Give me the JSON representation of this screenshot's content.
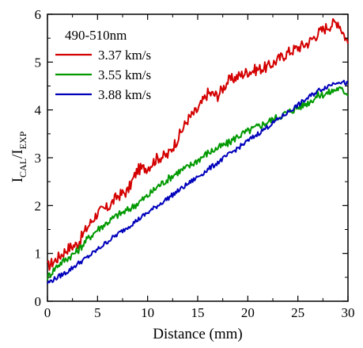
{
  "chart_data": {
    "type": "line",
    "title": "",
    "xlabel": "Distance (mm)",
    "ylabel": {
      "main_left": "I",
      "sub_left": "CAL",
      "slash": "/I",
      "sub_right": "EXP"
    },
    "xlim": [
      0,
      30
    ],
    "ylim": [
      0,
      6
    ],
    "x_ticks": [
      "0",
      "5",
      "10",
      "15",
      "20",
      "25",
      "30"
    ],
    "y_ticks": [
      "0",
      "1",
      "2",
      "3",
      "4",
      "5",
      "6"
    ],
    "grid": false,
    "legend_title": "490-510nm",
    "legend_position": "top-left",
    "series": [
      {
        "name": "3.37 km/s",
        "color": "#d40000",
        "x": [
          0,
          1,
          2,
          3,
          4,
          5,
          6,
          7,
          8,
          9,
          10,
          11,
          12,
          13,
          14,
          15,
          16,
          17,
          18,
          19,
          20,
          21,
          22,
          23,
          24,
          25,
          26,
          27,
          28,
          29,
          30
        ],
        "y": [
          0.72,
          0.9,
          1.1,
          1.2,
          1.55,
          1.85,
          1.95,
          2.2,
          2.3,
          2.75,
          2.8,
          3.0,
          3.05,
          3.4,
          3.8,
          4.0,
          4.35,
          4.3,
          4.6,
          4.7,
          4.8,
          4.85,
          4.9,
          5.05,
          5.2,
          5.3,
          5.4,
          5.6,
          5.75,
          5.85,
          5.4
        ]
      },
      {
        "name": "3.55 km/s",
        "color": "#009900",
        "x": [
          0,
          1,
          2,
          3,
          4,
          5,
          6,
          7,
          8,
          9,
          10,
          11,
          12,
          13,
          14,
          15,
          16,
          17,
          18,
          19,
          20,
          21,
          22,
          23,
          24,
          25,
          26,
          27,
          28,
          29,
          30
        ],
        "y": [
          0.5,
          0.75,
          0.9,
          1.05,
          1.3,
          1.5,
          1.65,
          1.8,
          1.9,
          2.05,
          2.2,
          2.4,
          2.55,
          2.7,
          2.8,
          2.95,
          3.1,
          3.2,
          3.3,
          3.45,
          3.55,
          3.65,
          3.75,
          3.85,
          3.95,
          4.05,
          4.15,
          4.3,
          4.35,
          4.45,
          4.35
        ]
      },
      {
        "name": "3.88 km/s",
        "color": "#0000bb",
        "x": [
          0,
          1,
          2,
          3,
          4,
          5,
          6,
          7,
          8,
          9,
          10,
          11,
          12,
          13,
          14,
          15,
          16,
          17,
          18,
          19,
          20,
          21,
          22,
          23,
          24,
          25,
          26,
          27,
          28,
          29,
          30
        ],
        "y": [
          0.38,
          0.5,
          0.62,
          0.78,
          0.92,
          1.08,
          1.25,
          1.4,
          1.55,
          1.7,
          1.85,
          2.0,
          2.15,
          2.3,
          2.45,
          2.6,
          2.75,
          2.9,
          3.05,
          3.2,
          3.35,
          3.5,
          3.65,
          3.8,
          3.95,
          4.1,
          4.25,
          4.4,
          4.5,
          4.6,
          4.55
        ]
      }
    ]
  }
}
